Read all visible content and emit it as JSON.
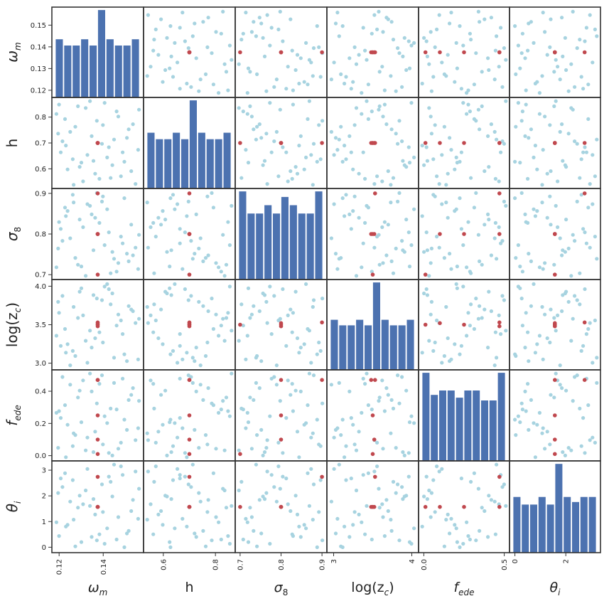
{
  "chart_data": {
    "type": "scatter",
    "kind": "pair-plot matrix (scatter off-diagonal, histogram on diagonal)",
    "colors": {
      "scatter": "#a7d3e0",
      "highlight": "#c0484e",
      "hist": "#4c72b0",
      "frame": "#333333"
    },
    "variables": [
      {
        "key": "omega_m",
        "base": "ω",
        "sub": "m",
        "italic_sub": true,
        "label_text": "ω_m",
        "range": [
          0.118,
          0.157
        ],
        "y_ticks": [
          "0.12",
          "0.13",
          "0.14",
          "0.15"
        ],
        "x_ticks": [
          "0.12",
          "0.14"
        ],
        "y_tick_values": [
          0.12,
          0.13,
          0.14,
          0.15
        ],
        "x_tick_values": [
          0.12,
          0.14
        ]
      },
      {
        "key": "h",
        "base": "h",
        "sub": "",
        "italic_sub": false,
        "label_text": "h",
        "range": [
          0.535,
          0.865
        ],
        "y_ticks": [
          "0.6",
          "0.7",
          "0.8"
        ],
        "x_ticks": [
          "0.6",
          "0.8"
        ],
        "y_tick_values": [
          0.6,
          0.7,
          0.8
        ],
        "x_tick_values": [
          0.6,
          0.8
        ]
      },
      {
        "key": "sigma_8",
        "base": "σ",
        "sub": "8",
        "italic_sub": false,
        "label_text": "σ_8",
        "range": [
          0.695,
          0.905
        ],
        "y_ticks": [
          "0.7",
          "0.8",
          "0.9"
        ],
        "x_ticks": [
          "0.7",
          "0.8",
          "0.9"
        ],
        "y_tick_values": [
          0.7,
          0.8,
          0.9
        ],
        "x_tick_values": [
          0.7,
          0.8,
          0.9
        ]
      },
      {
        "key": "log_zc",
        "base": "log(z",
        "sub": "c",
        "after": ")",
        "italic_sub": true,
        "label_text": "log(z_c)",
        "range": [
          2.95,
          4.05
        ],
        "y_ticks": [
          "3.0",
          "3.5",
          "4.0"
        ],
        "x_ticks": [
          "3",
          "4"
        ],
        "y_tick_values": [
          3.0,
          3.5,
          4.0
        ],
        "x_tick_values": [
          3,
          4
        ]
      },
      {
        "key": "f_ede",
        "base": "f",
        "sub": "ede",
        "italic_sub": true,
        "label_text": "f_ede",
        "range": [
          -0.015,
          0.515
        ],
        "y_ticks": [
          "0.0",
          "0.2",
          "0.4"
        ],
        "x_ticks": [
          "0.0",
          "0.5"
        ],
        "y_tick_values": [
          0.0,
          0.2,
          0.4
        ],
        "x_tick_values": [
          0.0,
          0.5
        ]
      },
      {
        "key": "theta_i",
        "base": "θ",
        "sub": "i",
        "italic_sub": true,
        "label_text": "θ_i",
        "range": [
          -0.1,
          3.25
        ],
        "y_ticks": [
          "0",
          "1",
          "2",
          "3"
        ],
        "x_ticks": [
          "0",
          "2"
        ],
        "y_tick_values": [
          0,
          1,
          2,
          3
        ],
        "x_tick_values": [
          0,
          2
        ]
      }
    ],
    "highlight_points": [
      [
        0.1375,
        0.7,
        0.8,
        3.5,
        0.25,
        1.57
      ],
      [
        0.1375,
        0.7,
        0.9,
        3.53,
        0.47,
        2.74
      ],
      [
        0.1375,
        0.7,
        0.7,
        3.5,
        0.01,
        1.57
      ],
      [
        0.1375,
        0.7,
        0.8,
        3.52,
        0.1,
        1.57
      ],
      [
        0.1375,
        0.7,
        0.8,
        3.48,
        0.47,
        1.57
      ]
    ],
    "sample_points_normalized": [
      [
        0.52,
        0.08,
        0.63,
        0.41,
        0.87,
        0.18
      ],
      [
        0.04,
        0.61,
        0.33,
        0.77,
        0.12,
        0.66
      ],
      [
        0.81,
        0.28,
        0.92,
        0.15,
        0.45,
        0.03
      ],
      [
        0.27,
        0.93,
        0.14,
        0.58,
        0.71,
        0.49
      ],
      [
        0.63,
        0.45,
        0.52,
        0.92,
        0.06,
        0.85
      ],
      [
        0.15,
        0.19,
        0.77,
        0.27,
        0.39,
        0.29
      ],
      [
        0.91,
        0.72,
        0.25,
        0.66,
        0.82,
        0.58
      ],
      [
        0.38,
        0.36,
        0.85,
        0.05,
        0.24,
        0.94
      ],
      [
        0.72,
        0.87,
        0.06,
        0.49,
        0.57,
        0.12
      ],
      [
        0.09,
        0.52,
        0.42,
        0.84,
        0.95,
        0.73
      ],
      [
        0.47,
        0.14,
        0.69,
        0.34,
        0.31,
        0.41
      ],
      [
        0.86,
        0.66,
        0.18,
        0.72,
        0.68,
        0.22
      ],
      [
        0.21,
        0.31,
        0.96,
        0.19,
        0.14,
        0.81
      ],
      [
        0.58,
        0.97,
        0.37,
        0.95,
        0.49,
        0.07
      ],
      [
        0.33,
        0.05,
        0.58,
        0.61,
        0.91,
        0.53
      ],
      [
        0.97,
        0.42,
        0.09,
        0.09,
        0.35,
        0.36
      ],
      [
        0.12,
        0.78,
        0.81,
        0.45,
        0.62,
        0.89
      ],
      [
        0.67,
        0.24,
        0.29,
        0.87,
        0.03,
        0.62
      ],
      [
        0.43,
        0.58,
        0.73,
        0.23,
        0.78,
        0.15
      ],
      [
        0.77,
        0.11,
        0.47,
        0.55,
        0.18,
        0.97
      ],
      [
        0.02,
        0.84,
        0.11,
        0.37,
        0.53,
        0.32
      ],
      [
        0.55,
        0.49,
        0.88,
        0.79,
        0.97,
        0.76
      ],
      [
        0.24,
        0.69,
        0.22,
        0.13,
        0.27,
        0.04
      ],
      [
        0.89,
        0.17,
        0.61,
        0.68,
        0.74,
        0.45
      ],
      [
        0.36,
        0.91,
        0.01,
        0.31,
        0.09,
        0.69
      ],
      [
        0.61,
        0.33,
        0.79,
        0.98,
        0.41,
        0.25
      ],
      [
        0.18,
        0.63,
        0.45,
        0.02,
        0.86,
        0.56
      ],
      [
        0.94,
        0.02,
        0.34,
        0.52,
        0.21,
        0.91
      ],
      [
        0.49,
        0.76,
        0.98,
        0.81,
        0.64,
        0.11
      ],
      [
        0.07,
        0.39,
        0.56,
        0.25,
        0.47,
        0.83
      ],
      [
        0.74,
        0.81,
        0.16,
        0.62,
        0.11,
        0.38
      ],
      [
        0.29,
        0.22,
        0.67,
        0.89,
        0.79,
        0.63
      ],
      [
        0.84,
        0.56,
        0.27,
        0.07,
        0.33,
        0.19
      ],
      [
        0.41,
        0.99,
        0.83,
        0.43,
        0.99,
        0.51
      ],
      [
        0.65,
        0.09,
        0.04,
        0.74,
        0.58,
        0.79
      ],
      [
        0.13,
        0.47,
        0.71,
        0.17,
        0.01,
        0.27
      ],
      [
        0.98,
        0.89,
        0.49,
        0.57,
        0.67,
        0.71
      ],
      [
        0.31,
        0.27,
        0.12,
        0.93,
        0.42,
        0.09
      ],
      [
        0.56,
        0.71,
        0.94,
        0.29,
        0.16,
        0.44
      ],
      [
        0.79,
        0.39,
        0.39,
        0.39,
        0.93,
        0.87
      ],
      [
        0.22,
        0.01,
        0.87,
        0.71,
        0.29,
        0.35
      ],
      [
        0.69,
        0.54,
        0.21,
        0.11,
        0.88,
        0.99
      ],
      [
        0.05,
        0.95,
        0.64,
        0.64,
        0.55,
        0.16
      ],
      [
        0.45,
        0.29,
        0.31,
        0.85,
        0.07,
        0.59
      ]
    ],
    "histograms": [
      [
        1.4,
        1.25,
        1.25,
        1.4,
        1.25,
        2.1,
        1.4,
        1.25,
        1.25,
        1.4
      ],
      [
        1.3,
        1.15,
        1.15,
        1.3,
        1.15,
        2.05,
        1.3,
        1.15,
        1.15,
        1.3
      ],
      [
        1.6,
        1.2,
        1.2,
        1.35,
        1.2,
        1.5,
        1.35,
        1.2,
        1.2,
        1.6
      ],
      [
        1.35,
        1.2,
        1.2,
        1.35,
        1.2,
        2.35,
        1.35,
        1.2,
        1.2,
        1.35
      ],
      [
        1.6,
        1.2,
        1.28,
        1.28,
        1.15,
        1.28,
        1.28,
        1.1,
        1.1,
        1.6
      ],
      [
        1.1,
        0.95,
        0.95,
        1.1,
        0.95,
        1.75,
        1.1,
        1.0,
        1.1,
        1.1
      ]
    ]
  }
}
